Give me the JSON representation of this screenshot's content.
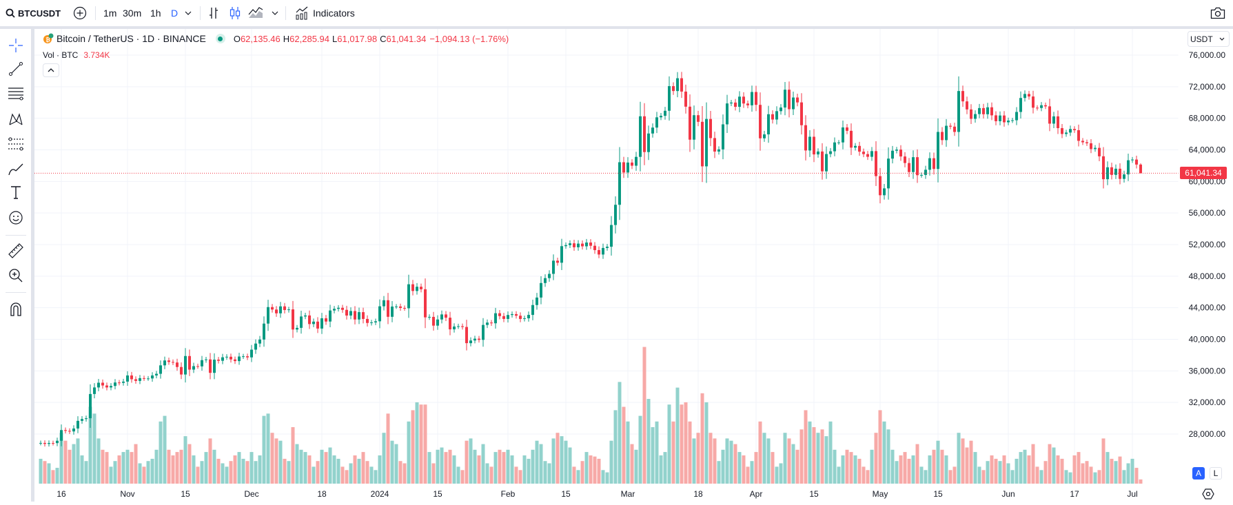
{
  "toolbar": {
    "symbol": "BTCUSDT",
    "intervals": [
      "1m",
      "30m",
      "1h",
      "D"
    ],
    "active_interval": "D",
    "indicators_label": "Indicators"
  },
  "legend": {
    "title": "Bitcoin / TetherUS · 1D · BINANCE",
    "o_label": "O",
    "o": "62,135.46",
    "h_label": "H",
    "h": "62,285.94",
    "l_label": "L",
    "l": "61,017.98",
    "c_label": "C",
    "c": "61,041.34",
    "change": "−1,094.13 (−1.76%)",
    "vol_label": "Vol · BTC",
    "vol_value": "3.734K"
  },
  "price_axis": {
    "currency": "USDT",
    "labels": [
      "76,000.00",
      "72,000.00",
      "68,000.00",
      "64,000.00",
      "60,000.00",
      "56,000.00",
      "52,000.00",
      "48,000.00",
      "44,000.00",
      "40,000.00",
      "36,000.00",
      "32,000.00",
      "28,000.00"
    ],
    "last_price": "61,041.34",
    "auto_label": "A",
    "log_label": "L"
  },
  "time_axis": [
    {
      "label": "16",
      "date": "2023-10-16"
    },
    {
      "label": "Nov",
      "date": "2023-11-01"
    },
    {
      "label": "15",
      "date": "2023-11-15"
    },
    {
      "label": "Dec",
      "date": "2023-12-01"
    },
    {
      "label": "18",
      "date": "2023-12-18"
    },
    {
      "label": "2024",
      "date": "2024-01-01"
    },
    {
      "label": "15",
      "date": "2024-01-15"
    },
    {
      "label": "Feb",
      "date": "2024-02-01"
    },
    {
      "label": "15",
      "date": "2024-02-15"
    },
    {
      "label": "Mar",
      "date": "2024-03-01"
    },
    {
      "label": "18",
      "date": "2024-03-18"
    },
    {
      "label": "Apr",
      "date": "2024-04-01"
    },
    {
      "label": "15",
      "date": "2024-04-15"
    },
    {
      "label": "May",
      "date": "2024-05-01"
    },
    {
      "label": "15",
      "date": "2024-05-15"
    },
    {
      "label": "Jun",
      "date": "2024-06-01"
    },
    {
      "label": "17",
      "date": "2024-06-17"
    },
    {
      "label": "Jul",
      "date": "2024-07-01"
    }
  ],
  "colors": {
    "up": "#089981",
    "down": "#f23645",
    "vol_up": "#92d2cc",
    "vol_down": "#f7a9a7",
    "accent": "#2962ff"
  },
  "chart_data": {
    "type": "candlestick",
    "start_date": "2023-10-11",
    "ylim": [
      24000,
      78000
    ],
    "last_candle": {
      "open": 62135.46,
      "high": 62285.94,
      "low": 61017.98,
      "close": 61041.34
    },
    "close": [
      26870,
      26750,
      26860,
      26850,
      27150,
      28500,
      28400,
      28330,
      28700,
      29670,
      29900,
      30000,
      33070,
      33900,
      34500,
      34150,
      33900,
      34090,
      34530,
      34480,
      34640,
      35420,
      34940,
      34730,
      35080,
      35040,
      35040,
      35420,
      35630,
      36700,
      37320,
      37130,
      37060,
      36490,
      35540,
      37880,
      36160,
      36600,
      36570,
      37360,
      37450,
      35750,
      37420,
      37280,
      37720,
      37790,
      37450,
      37240,
      37820,
      37850,
      37710,
      38690,
      39460,
      39970,
      41990,
      44080,
      43770,
      43290,
      44170,
      43710,
      43790,
      41240,
      41450,
      42890,
      43020,
      41930,
      42240,
      41360,
      42660,
      42250,
      43650,
      43860,
      43990,
      43730,
      43010,
      43580,
      42510,
      43440,
      42580,
      42070,
      42140,
      42280,
      44180,
      44950,
      42850,
      44150,
      44160,
      43970,
      43930,
      46970,
      46120,
      46660,
      46340,
      42780,
      42840,
      41730,
      42510,
      43150,
      42740,
      41260,
      41620,
      41660,
      41560,
      39510,
      39850,
      40080,
      39930,
      41820,
      42120,
      42030,
      43300,
      42940,
      42580,
      43080,
      43190,
      42990,
      42580,
      42660,
      43090,
      44340,
      45290,
      47130,
      47750,
      48290,
      49960,
      49700,
      51800,
      51930,
      52160,
      51660,
      52120,
      51780,
      52260,
      51850,
      51300,
      50740,
      51570,
      51730,
      54480,
      57040,
      62430,
      61130,
      62390,
      61990,
      63110,
      68250,
      63720,
      66070,
      66820,
      68120,
      68310,
      68950,
      72070,
      71450,
      73070,
      71380,
      69470,
      65290,
      68390,
      67550,
      61910,
      67910,
      65490,
      63780,
      64060,
      67230,
      69880,
      69990,
      69450,
      70740,
      69870,
      69640,
      71330,
      69700,
      65460,
      65960,
      68510,
      67840,
      68900,
      69360,
      71620,
      69150,
      70630,
      70010,
      67120,
      63920,
      65660,
      63420,
      63790,
      61280,
      63470,
      63820,
      64940,
      64940,
      66840,
      66410,
      64280,
      64500,
      63770,
      63460,
      63120,
      63840,
      60670,
      58250,
      59120,
      62890,
      63890,
      64030,
      63160,
      62330,
      61190,
      63070,
      60790,
      60820,
      61480,
      62940,
      61580,
      66270,
      65230,
      67050,
      66940,
      66270,
      71450,
      70140,
      69120,
      67930,
      68530,
      69290,
      68510,
      69390,
      68370,
      67630,
      68350,
      67490,
      67710,
      67750,
      68800,
      70570,
      71080,
      70760,
      69340,
      69300,
      69650,
      69510,
      67320,
      68240,
      66750,
      66010,
      66190,
      66640,
      66490,
      65140,
      64960,
      64830,
      64100,
      64250,
      63180,
      60280,
      61790,
      60830,
      61610,
      60320,
      60890,
      62680,
      62770,
      62135.46,
      61041.34
    ],
    "volume_k": [
      22,
      20,
      18,
      12,
      14,
      45,
      38,
      30,
      35,
      40,
      25,
      20,
      68,
      62,
      40,
      30,
      28,
      15,
      20,
      25,
      28,
      30,
      28,
      35,
      18,
      15,
      20,
      22,
      30,
      55,
      60,
      30,
      25,
      28,
      30,
      42,
      35,
      25,
      15,
      20,
      28,
      40,
      30,
      22,
      18,
      15,
      20,
      25,
      28,
      22,
      20,
      28,
      20,
      25,
      60,
      62,
      45,
      40,
      38,
      22,
      20,
      50,
      35,
      30,
      28,
      25,
      15,
      20,
      30,
      28,
      32,
      25,
      22,
      15,
      12,
      18,
      25,
      22,
      28,
      20,
      15,
      12,
      25,
      45,
      62,
      38,
      35,
      20,
      18,
      55,
      65,
      72,
      70,
      70,
      28,
      18,
      30,
      32,
      28,
      30,
      25,
      15,
      12,
      38,
      40,
      30,
      25,
      35,
      18,
      15,
      28,
      30,
      28,
      30,
      25,
      15,
      12,
      25,
      22,
      30,
      38,
      35,
      20,
      18,
      40,
      45,
      42,
      38,
      32,
      15,
      12,
      20,
      28,
      25,
      24,
      22,
      12,
      10,
      38,
      65,
      90,
      68,
      55,
      35,
      30,
      60,
      121,
      75,
      50,
      55,
      25,
      28,
      70,
      55,
      85,
      70,
      72,
      55,
      40,
      45,
      80,
      72,
      45,
      40,
      20,
      30,
      40,
      38,
      35,
      28,
      25,
      15,
      20,
      28,
      55,
      45,
      40,
      28,
      15,
      18,
      45,
      40,
      35,
      30,
      48,
      65,
      55,
      50,
      45,
      48,
      42,
      55,
      30,
      15,
      25,
      30,
      28,
      25,
      22,
      15,
      12,
      30,
      45,
      65,
      55,
      48,
      30,
      20,
      25,
      28,
      22,
      25,
      35,
      15,
      12,
      25,
      30,
      38,
      30,
      25,
      12,
      15,
      45,
      40,
      32,
      38,
      28,
      15,
      12,
      20,
      25,
      22,
      20,
      25,
      18,
      12,
      22,
      28,
      30,
      25,
      35,
      15,
      12,
      20,
      35,
      32,
      25,
      22,
      12,
      10,
      25,
      28,
      18,
      20,
      15,
      10,
      12,
      40,
      28,
      22,
      20,
      24,
      12,
      18,
      22,
      14,
      3.734
    ]
  }
}
